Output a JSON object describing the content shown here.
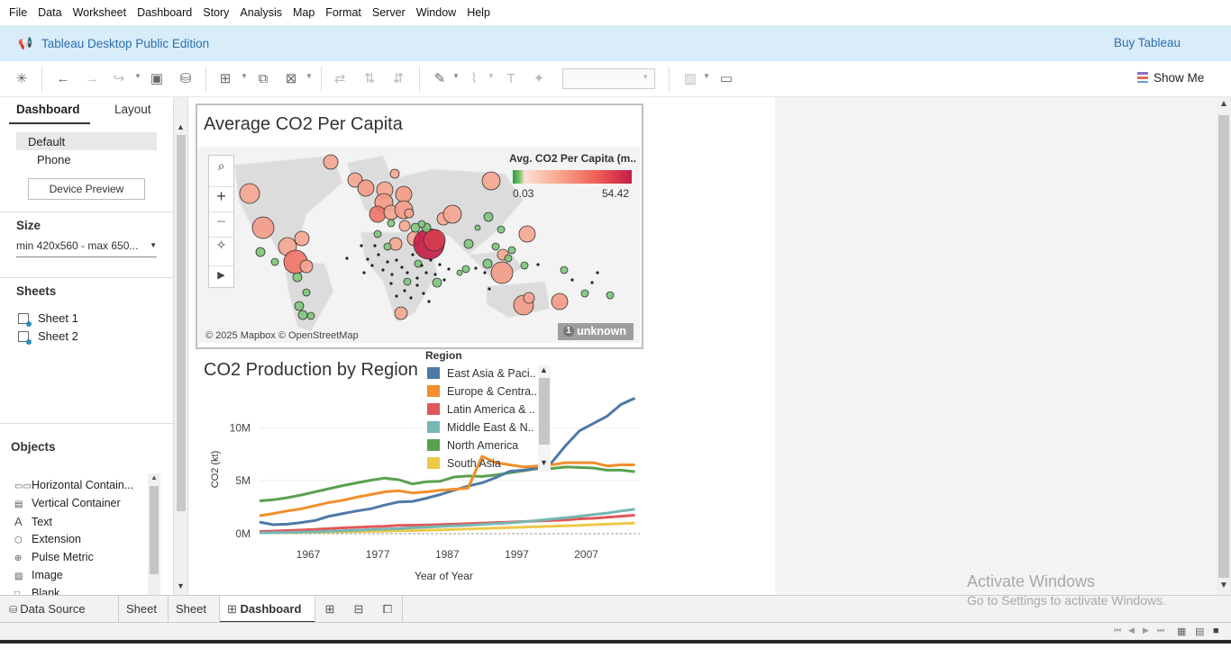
{
  "menu": [
    "File",
    "Data",
    "Worksheet",
    "Dashboard",
    "Story",
    "Analysis",
    "Map",
    "Format",
    "Server",
    "Window",
    "Help"
  ],
  "banner": {
    "title": "Tableau Desktop Public Edition",
    "buy": "Buy Tableau"
  },
  "toolbar": {
    "show_me": "Show Me"
  },
  "left_pane": {
    "tabs": {
      "dashboard": "Dashboard",
      "layout": "Layout"
    },
    "device": {
      "default": "Default",
      "phone": "Phone",
      "preview_button": "Device Preview"
    },
    "size": {
      "heading": "Size",
      "value": "min 420x560 - max 650..."
    },
    "sheets": {
      "heading": "Sheets",
      "items": [
        "Sheet 1",
        "Sheet 2"
      ]
    },
    "objects": {
      "heading": "Objects",
      "items": [
        "Horizontal Contain...",
        "Vertical Container",
        "Text",
        "Extension",
        "Pulse Metric",
        "Image",
        "Blank"
      ]
    }
  },
  "map_sheet": {
    "title": "Average CO2 Per Capita",
    "legend_title": "Avg. CO2 Per Capita (m..",
    "legend_min": "0.03",
    "legend_max": "54.42",
    "attribution": "© 2025 Mapbox © OpenStreetMap",
    "unknown_count": "1",
    "unknown_label": "unknown",
    "colors": {
      "low": "#2e9a3f",
      "high": "#c51b45"
    }
  },
  "line_sheet": {
    "title": "CO2 Production by Region",
    "legend_title": "Region",
    "regions": [
      {
        "name": "East Asia & Paci..",
        "color": "#4e79a7"
      },
      {
        "name": "Europe & Centra..",
        "color": "#f28e2b"
      },
      {
        "name": "Latin America & ..",
        "color": "#e15759"
      },
      {
        "name": "Middle East & N..",
        "color": "#76b7b2"
      },
      {
        "name": "North America",
        "color": "#59a14f"
      },
      {
        "name": "South Asia",
        "color": "#edc948"
      }
    ]
  },
  "chart_data": {
    "type": "line",
    "title": "CO2 Production by Region",
    "xlabel": "Year of Year",
    "ylabel": "CO2 (kt)",
    "x_ticks": [
      "1967",
      "1977",
      "1987",
      "1997",
      "2007"
    ],
    "y_ticks": [
      "0M",
      "5M",
      "10M"
    ],
    "x": [
      1960,
      1962,
      1964,
      1966,
      1968,
      1970,
      1972,
      1974,
      1976,
      1978,
      1980,
      1982,
      1984,
      1986,
      1988,
      1990,
      1992,
      1994,
      1996,
      1998,
      2000,
      2002,
      2004,
      2006,
      2008,
      2010,
      2012,
      2014
    ],
    "ylim": [
      0,
      13000000
    ],
    "series": [
      {
        "name": "East Asia & Paci..",
        "values": [
          1100000,
          850000,
          900000,
          1050000,
          1250000,
          1650000,
          1900000,
          2150000,
          2350000,
          2700000,
          3000000,
          3050000,
          3350000,
          3700000,
          4100000,
          4500000,
          4800000,
          5300000,
          5900000,
          6000000,
          6200000,
          6700000,
          8300000,
          9700000,
          10400000,
          11100000,
          12200000,
          12800000
        ]
      },
      {
        "name": "Europe & Centra..",
        "values": [
          1700000,
          1900000,
          2150000,
          2350000,
          2650000,
          2950000,
          3150000,
          3450000,
          3700000,
          3950000,
          4050000,
          3850000,
          3950000,
          4100000,
          4200000,
          4300000,
          7300000,
          6700000,
          6500000,
          6300000,
          6400000,
          6500000,
          6700000,
          6700000,
          6700000,
          6400000,
          6500000,
          6500000
        ]
      },
      {
        "name": "Latin America & ..",
        "values": [
          200000,
          250000,
          300000,
          350000,
          400000,
          480000,
          550000,
          600000,
          650000,
          700000,
          780000,
          800000,
          820000,
          860000,
          900000,
          950000,
          1000000,
          1050000,
          1100000,
          1150000,
          1200000,
          1250000,
          1300000,
          1400000,
          1450000,
          1550000,
          1650000,
          1750000
        ]
      },
      {
        "name": "Middle East & N..",
        "values": [
          80000,
          100000,
          120000,
          150000,
          180000,
          230000,
          280000,
          330000,
          380000,
          430000,
          480000,
          560000,
          620000,
          680000,
          740000,
          800000,
          880000,
          950000,
          1020000,
          1120000,
          1250000,
          1380000,
          1500000,
          1650000,
          1800000,
          1950000,
          2150000,
          2300000
        ]
      },
      {
        "name": "North America",
        "values": [
          3100000,
          3200000,
          3400000,
          3650000,
          3950000,
          4250000,
          4550000,
          4800000,
          5050000,
          5250000,
          5100000,
          4700000,
          4900000,
          4950000,
          5350000,
          5450000,
          5400000,
          5550000,
          5750000,
          5950000,
          6150000,
          6150000,
          6300000,
          6250000,
          6200000,
          6000000,
          6000000,
          5850000
        ]
      },
      {
        "name": "South Asia",
        "values": [
          90000,
          100000,
          110000,
          120000,
          140000,
          160000,
          180000,
          200000,
          220000,
          250000,
          270000,
          300000,
          330000,
          360000,
          400000,
          450000,
          490000,
          530000,
          570000,
          620000,
          660000,
          700000,
          740000,
          790000,
          850000,
          900000,
          960000,
          1000000
        ]
      }
    ]
  }
}
